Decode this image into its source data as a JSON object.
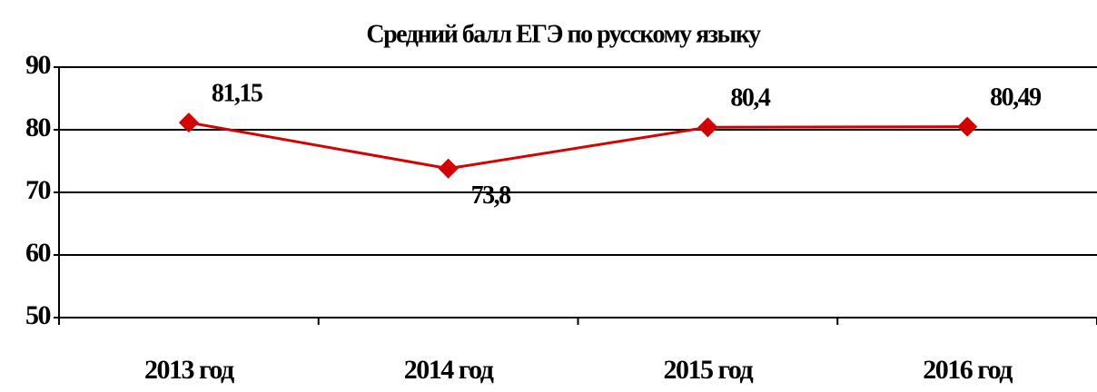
{
  "chart_data": {
    "type": "line",
    "title": "Средний балл ЕГЭ по русскому языку",
    "categories": [
      "2013 год",
      "2014 год",
      "2015 год",
      "2016 год"
    ],
    "values": [
      81.15,
      73.8,
      80.4,
      80.49
    ],
    "value_labels": [
      "81,15",
      "73,8",
      "80,4",
      "80,49"
    ],
    "color": "#d40000",
    "ylim": [
      50,
      90
    ],
    "yticks": [
      50,
      60,
      70,
      80,
      90
    ],
    "grid": true
  }
}
